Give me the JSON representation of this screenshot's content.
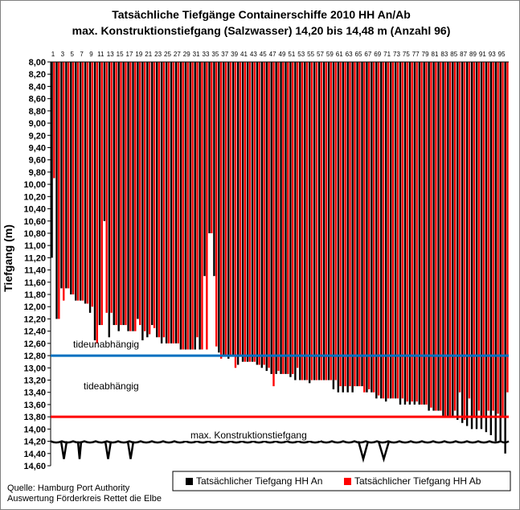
{
  "chart_data": {
    "type": "bar",
    "title": "Tatsächliche Tiefgänge Containerschiffe 2010 HH An/Ab",
    "subtitle": "max. Konstruktionstiefgang (Salzwasser) 14,20 bis 14,48 m (Anzahl 96)",
    "ylabel": "Tiefgang (m)",
    "xlabel": "",
    "ylim": [
      8.0,
      14.6
    ],
    "y_reversed": true,
    "y_ticks": [
      "8,00",
      "8,20",
      "8,40",
      "8,60",
      "8,80",
      "9,00",
      "9,20",
      "9,40",
      "9,60",
      "9,80",
      "10,00",
      "10,20",
      "10,40",
      "10,60",
      "10,80",
      "11,00",
      "11,20",
      "11,40",
      "11,60",
      "11,80",
      "12,00",
      "12,20",
      "12,40",
      "12,60",
      "12,80",
      "13,00",
      "13,20",
      "13,40",
      "13,60",
      "13,80",
      "14,00",
      "14,20",
      "14,40",
      "14,60"
    ],
    "x_ticks": [
      "1",
      "3",
      "5",
      "7",
      "9",
      "11",
      "13",
      "15",
      "17",
      "19",
      "21",
      "23",
      "25",
      "27",
      "29",
      "31",
      "33",
      "35",
      "37",
      "39",
      "41",
      "43",
      "45",
      "47",
      "49",
      "51",
      "53",
      "55",
      "57",
      "59",
      "61",
      "63",
      "65",
      "67",
      "69",
      "71",
      "73",
      "75",
      "77",
      "79",
      "81",
      "83",
      "85",
      "87",
      "89",
      "91",
      "93",
      "95"
    ],
    "x": [
      1,
      2,
      3,
      4,
      5,
      6,
      7,
      8,
      9,
      10,
      11,
      12,
      13,
      14,
      15,
      16,
      17,
      18,
      19,
      20,
      21,
      22,
      23,
      24,
      25,
      26,
      27,
      28,
      29,
      30,
      31,
      32,
      33,
      34,
      35,
      36,
      37,
      38,
      39,
      40,
      41,
      42,
      43,
      44,
      45,
      46,
      47,
      48,
      49,
      50,
      51,
      52,
      53,
      54,
      55,
      56,
      57,
      58,
      59,
      60,
      61,
      62,
      63,
      64,
      65,
      66,
      67,
      68,
      69,
      70,
      71,
      72,
      73,
      74,
      75,
      76,
      77,
      78,
      79,
      80,
      81,
      82,
      83,
      84,
      85,
      86,
      87,
      88,
      89,
      90,
      91,
      92,
      93,
      94,
      95,
      96
    ],
    "series": [
      {
        "name": "Tatsächlicher Tiefgang HH An",
        "color": "#000000",
        "values": [
          11.2,
          12.2,
          11.7,
          11.7,
          11.8,
          11.9,
          11.9,
          11.95,
          12.1,
          12.55,
          12.3,
          10.6,
          12.5,
          12.3,
          12.4,
          12.3,
          12.4,
          12.4,
          12.2,
          12.55,
          12.5,
          12.3,
          12.5,
          12.6,
          12.6,
          12.6,
          12.6,
          12.7,
          12.7,
          12.7,
          12.7,
          12.7,
          11.5,
          10.8,
          11.5,
          12.75,
          12.8,
          12.85,
          12.8,
          12.95,
          12.9,
          12.9,
          12.9,
          12.95,
          13.0,
          13.05,
          13.1,
          13.1,
          13.1,
          13.1,
          13.15,
          13.2,
          13.2,
          13.2,
          13.25,
          13.2,
          13.2,
          13.2,
          13.2,
          13.35,
          13.4,
          13.4,
          13.4,
          13.4,
          13.3,
          13.3,
          13.4,
          13.4,
          13.5,
          13.5,
          13.55,
          13.5,
          13.5,
          13.6,
          13.6,
          13.6,
          13.6,
          13.6,
          13.6,
          13.7,
          13.7,
          13.7,
          13.8,
          13.8,
          13.8,
          13.85,
          13.9,
          13.95,
          14.0,
          14.0,
          14.0,
          14.05,
          14.1,
          14.2,
          14.2,
          14.4
        ]
      },
      {
        "name": "Tatsächlicher Tiefgang HH Ab",
        "color": "#ff0000",
        "values": [
          9.9,
          12.2,
          11.9,
          11.7,
          11.8,
          11.9,
          11.9,
          11.95,
          12.0,
          12.6,
          12.3,
          12.1,
          12.1,
          12.3,
          12.3,
          12.3,
          12.4,
          12.4,
          12.3,
          12.4,
          12.45,
          12.35,
          12.5,
          12.5,
          12.6,
          12.6,
          12.6,
          12.7,
          12.7,
          12.7,
          12.5,
          12.7,
          12.7,
          10.8,
          12.65,
          12.85,
          12.8,
          12.8,
          13.0,
          12.8,
          12.9,
          12.9,
          12.9,
          12.95,
          12.95,
          13.0,
          13.3,
          13.05,
          13.1,
          13.1,
          13.1,
          13.0,
          13.2,
          13.2,
          13.2,
          13.2,
          13.2,
          13.2,
          13.2,
          13.2,
          13.3,
          13.3,
          13.3,
          13.3,
          13.3,
          13.4,
          13.35,
          13.4,
          13.45,
          13.5,
          13.5,
          13.5,
          13.5,
          13.5,
          13.55,
          13.55,
          13.55,
          13.6,
          13.6,
          13.65,
          13.7,
          13.7,
          13.8,
          13.8,
          13.7,
          13.4,
          13.85,
          13.5,
          13.8,
          13.7,
          13.8,
          13.7,
          13.7,
          13.75,
          13.8,
          13.4
        ]
      }
    ],
    "reference_lines": [
      {
        "value": 12.8,
        "color": "#0070c0",
        "label_above": "tideunabhängig",
        "label_below": "tideabhängig"
      },
      {
        "value": 13.8,
        "color": "#ff0000"
      },
      {
        "value": 14.2,
        "color": "#000000",
        "label_above": "max. Konstruktionstiefgang"
      }
    ],
    "grid": false,
    "legend_position": "bottom-right",
    "source": [
      "Quelle: Hamburg Port Authority",
      "Auswertung Förderkreis Rettet die Elbe"
    ]
  }
}
